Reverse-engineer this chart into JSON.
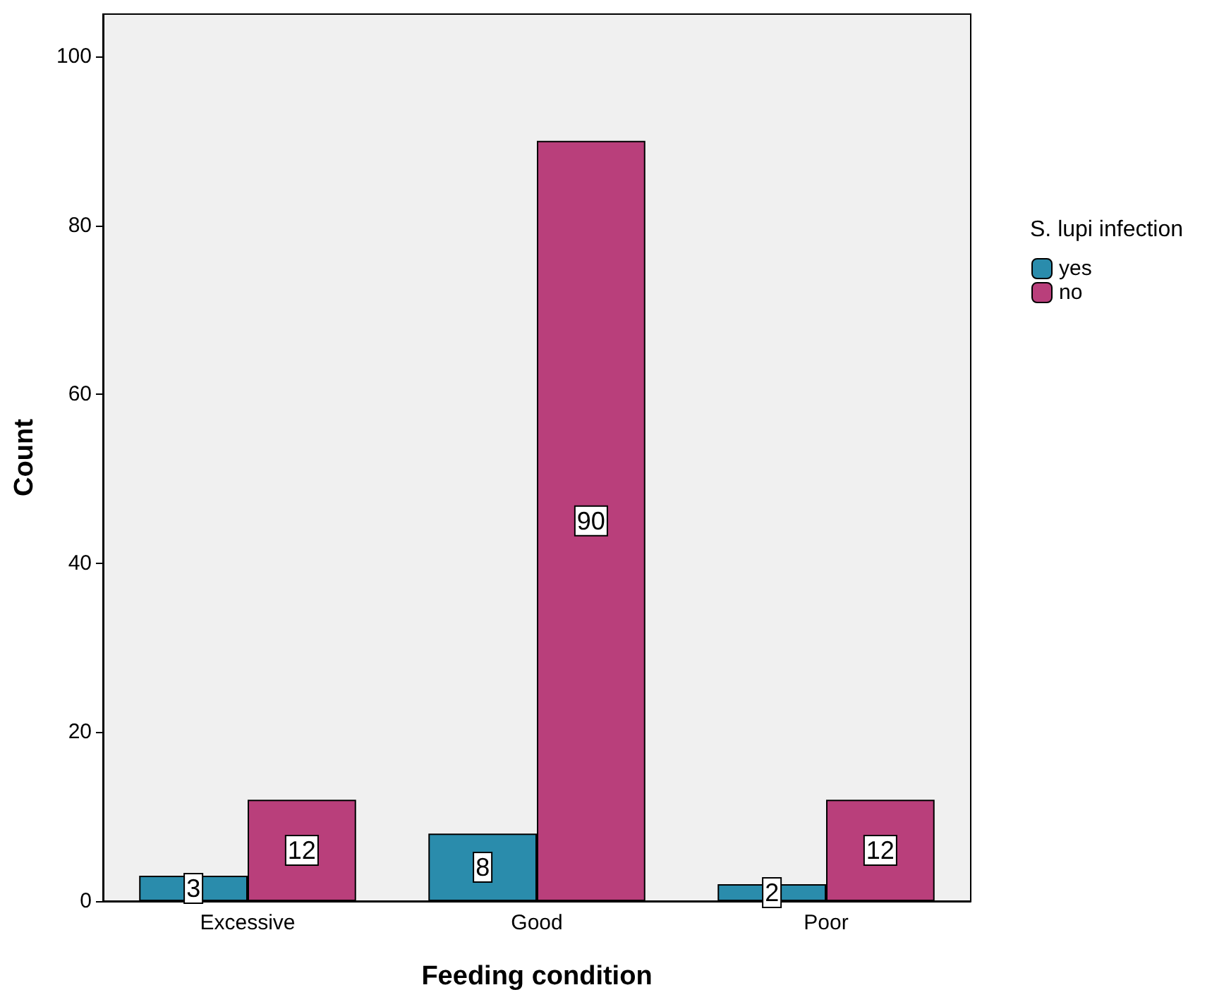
{
  "chart_data": {
    "type": "bar",
    "xlabel": "Feeding condition",
    "ylabel": "Count",
    "legend_title": "S. lupi infection",
    "categories": [
      "Excessive",
      "Good",
      "Poor"
    ],
    "series": [
      {
        "name": "yes",
        "color": "#2a8cac",
        "values": [
          3,
          8,
          2
        ]
      },
      {
        "name": "no",
        "color": "#b93f7b",
        "values": [
          12,
          90,
          12
        ]
      }
    ],
    "ylim": [
      0,
      105
    ],
    "yticks": [
      0,
      20,
      40,
      60,
      80,
      100
    ],
    "grid": false,
    "legend": "right",
    "data_labels": true
  }
}
